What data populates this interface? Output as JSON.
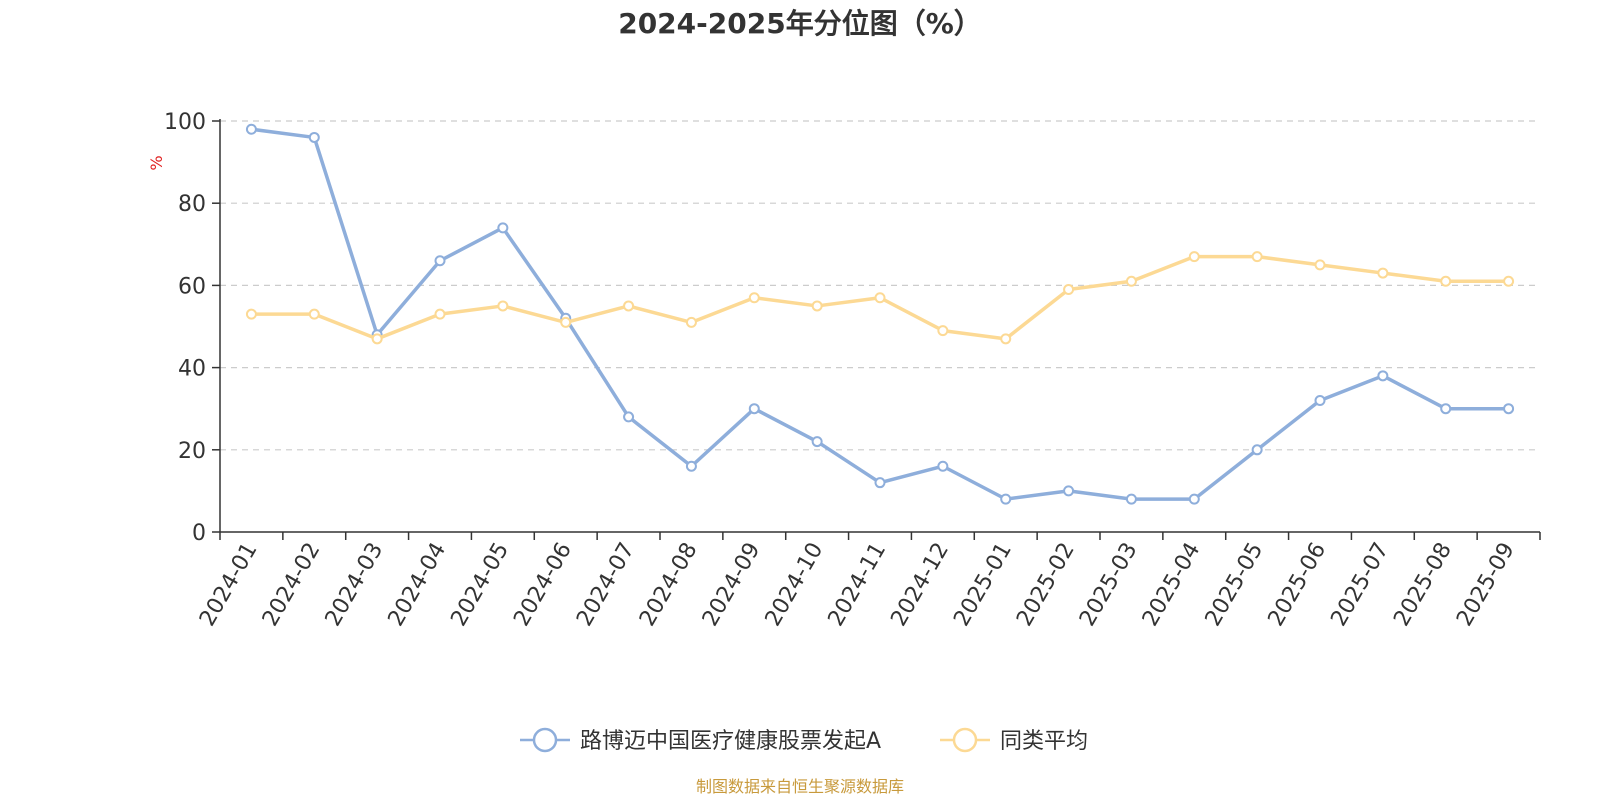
{
  "chart_data": {
    "type": "line",
    "title": "2024-2025年分位图（%）",
    "ylabel": "%",
    "ylim": [
      0,
      100
    ],
    "yticks": [
      0,
      20,
      40,
      60,
      80,
      100
    ],
    "grid": "horizontal dashed",
    "legend_position": "bottom-center",
    "categories": [
      "2024-01",
      "2024-02",
      "2024-03",
      "2024-04",
      "2024-05",
      "2024-06",
      "2024-07",
      "2024-08",
      "2024-09",
      "2024-10",
      "2024-11",
      "2024-12",
      "2025-01",
      "2025-02",
      "2025-03",
      "2025-04",
      "2025-05",
      "2025-06",
      "2025-07",
      "2025-08",
      "2025-09"
    ],
    "series": [
      {
        "name": "路博迈中国医疗健康股票发起A",
        "color": "#8eaedb",
        "values": [
          98,
          96,
          48,
          66,
          74,
          52,
          28,
          16,
          30,
          22,
          12,
          16,
          8,
          10,
          8,
          8,
          20,
          32,
          38,
          30,
          30
        ]
      },
      {
        "name": "同类平均",
        "color": "#fcd994",
        "values": [
          53,
          53,
          47,
          53,
          55,
          51,
          55,
          51,
          57,
          55,
          57,
          49,
          47,
          59,
          61,
          67,
          67,
          65,
          63,
          61,
          61
        ]
      }
    ],
    "source": "制图数据来自恒生聚源数据库"
  },
  "colors": {
    "ylabel": "#e02020",
    "source": "#c89a3c",
    "grid": "#cccccc",
    "axis": "#333333"
  }
}
